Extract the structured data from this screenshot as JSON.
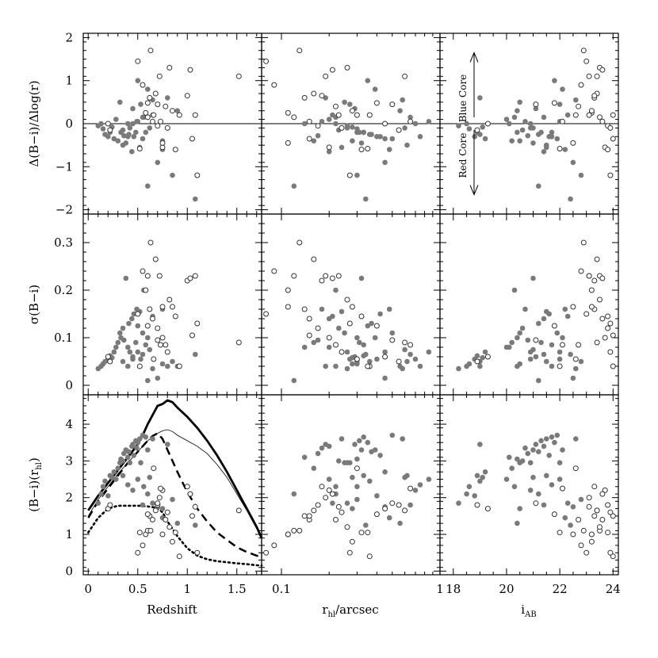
{
  "chart_data": {
    "type": "scatter",
    "columns": [
      {
        "key": "z",
        "xlabel_main": "Redshift",
        "xlabel_sub": "",
        "xlabel_tail": "",
        "xlim": [
          -0.05,
          1.75
        ],
        "xscale": "linear",
        "xticks": [
          0,
          0.5,
          1,
          1.5
        ],
        "xticklabels": [
          "0",
          "0.5",
          "1",
          "1.5"
        ],
        "xminor": [
          0.1,
          0.2,
          0.3,
          0.4,
          0.6,
          0.7,
          0.8,
          0.9,
          1.1,
          1.2,
          1.3,
          1.4,
          1.6,
          1.7
        ]
      },
      {
        "key": "r",
        "xlabel_main": "r",
        "xlabel_sub": "hl",
        "xlabel_tail": "/arcsec",
        "xlim": [
          0.075,
          1.0
        ],
        "xscale": "log",
        "xticks": [
          0.1,
          1
        ],
        "xticklabels": [
          "0.1",
          "1"
        ],
        "xminor": [
          0.2,
          0.3,
          0.4,
          0.5,
          0.6,
          0.7,
          0.8,
          0.9
        ]
      },
      {
        "key": "i",
        "xlabel_main": "i",
        "xlabel_sub": "AB",
        "xlabel_tail": "",
        "xlim": [
          17.5,
          24.2
        ],
        "xscale": "linear",
        "xticks": [
          18,
          20,
          22,
          24
        ],
        "xticklabels": [
          "18",
          "20",
          "22",
          "24"
        ],
        "xminor": [
          18.5,
          19,
          19.5,
          20.5,
          21,
          21.5,
          22.5,
          23,
          23.5
        ]
      }
    ],
    "rows": [
      {
        "key": "grad",
        "ylabel": "Δ(B−i)/Δlog(r)",
        "ylim": [
          -2.1,
          2.1
        ],
        "yticks": [
          -2,
          -1,
          0,
          1,
          2
        ],
        "yticklabels": [
          "−2",
          "−1",
          "0",
          "1",
          "2"
        ],
        "zero_line": true
      },
      {
        "key": "sig",
        "ylabel": "σ(B−i)",
        "ylim": [
          -0.02,
          0.36
        ],
        "yticks": [
          0,
          0.1,
          0.2,
          0.3
        ],
        "yticklabels": [
          "0",
          "0.1",
          "0.2",
          "0.3"
        ],
        "zero_line": false
      },
      {
        "key": "col",
        "ylabel": "(B−i)(r",
        "ylabel_sub": "hl",
        "ylabel_tail": ")",
        "ylim": [
          -0.1,
          4.8
        ],
        "yticks": [
          0,
          1,
          2,
          3,
          4
        ],
        "yticklabels": [
          "0",
          "1",
          "2",
          "3",
          "4"
        ],
        "zero_line": false
      }
    ],
    "annotations": {
      "blue_core": "Blue Core",
      "red_core": "Red Core"
    },
    "model_tracks": [
      {
        "name": "",
        "style": "thick-solid",
        "x": [
          0,
          0.1,
          0.2,
          0.3,
          0.4,
          0.5,
          0.55,
          0.6,
          0.65,
          0.7,
          0.75,
          0.8,
          0.85,
          0.9,
          1.0,
          1.1,
          1.2,
          1.3,
          1.4,
          1.5,
          1.6,
          1.7,
          1.75
        ],
        "y": [
          1.65,
          2.05,
          2.4,
          2.75,
          3.1,
          3.45,
          3.7,
          4.0,
          4.25,
          4.5,
          4.55,
          4.65,
          4.6,
          4.45,
          4.2,
          3.9,
          3.55,
          3.15,
          2.7,
          2.2,
          1.7,
          1.2,
          0.9
        ]
      },
      {
        "name": "",
        "style": "thin-solid",
        "x": [
          0,
          0.1,
          0.2,
          0.3,
          0.4,
          0.5,
          0.55,
          0.6,
          0.65,
          0.7,
          0.75,
          0.8,
          0.85,
          0.9,
          1.0,
          1.1,
          1.2,
          1.3,
          1.4,
          1.5,
          1.6,
          1.7,
          1.75
        ],
        "y": [
          1.5,
          1.95,
          2.3,
          2.65,
          2.95,
          3.25,
          3.4,
          3.55,
          3.65,
          3.75,
          3.82,
          3.85,
          3.8,
          3.7,
          3.55,
          3.4,
          3.2,
          2.9,
          2.55,
          2.1,
          1.65,
          1.15,
          0.88
        ]
      },
      {
        "name": "",
        "style": "dashed",
        "x": [
          0,
          0.1,
          0.2,
          0.3,
          0.4,
          0.5,
          0.6,
          0.65,
          0.7,
          0.75,
          0.8,
          0.9,
          1.0,
          1.1,
          1.2,
          1.3,
          1.4,
          1.5,
          1.6,
          1.7,
          1.75
        ],
        "y": [
          1.45,
          1.9,
          2.25,
          2.6,
          2.95,
          3.25,
          3.55,
          3.68,
          3.75,
          3.6,
          3.3,
          2.7,
          2.15,
          1.7,
          1.35,
          1.05,
          0.85,
          0.65,
          0.52,
          0.42,
          0.38
        ]
      },
      {
        "name": "",
        "style": "dotted",
        "x": [
          0,
          0.1,
          0.2,
          0.3,
          0.4,
          0.5,
          0.6,
          0.7,
          0.75,
          0.8,
          0.9,
          1.0,
          1.1,
          1.2,
          1.3,
          1.4,
          1.5,
          1.6,
          1.7,
          1.75
        ],
        "y": [
          1.05,
          1.45,
          1.7,
          1.78,
          1.78,
          1.78,
          1.76,
          1.72,
          1.6,
          1.35,
          0.95,
          0.62,
          0.42,
          0.32,
          0.27,
          0.24,
          0.21,
          0.19,
          0.16,
          0.15
        ]
      }
    ],
    "points": [
      {
        "z": 0.1,
        "r": 0.26,
        "i": 18.2,
        "grad": -0.05,
        "sig": 0.035,
        "col": 1.85,
        "f": 1
      },
      {
        "z": 0.13,
        "r": 0.22,
        "i": 18.5,
        "grad": 0.0,
        "sig": 0.04,
        "col": 2.1,
        "f": 1
      },
      {
        "z": 0.15,
        "r": 0.3,
        "i": 18.6,
        "grad": -0.12,
        "sig": 0.045,
        "col": 2.3,
        "f": 1
      },
      {
        "z": 0.17,
        "r": 0.36,
        "i": 19.0,
        "grad": -0.25,
        "sig": 0.05,
        "col": 2.45,
        "f": 1
      },
      {
        "z": 0.2,
        "r": 0.4,
        "i": 18.8,
        "grad": -0.3,
        "sig": 0.055,
        "col": 2.05,
        "f": 1
      },
      {
        "z": 0.22,
        "r": 0.33,
        "i": 18.9,
        "grad": -0.2,
        "sig": 0.062,
        "col": 2.6,
        "f": 1
      },
      {
        "z": 0.24,
        "r": 0.28,
        "i": 19.1,
        "grad": -0.08,
        "sig": 0.058,
        "col": 2.55,
        "f": 1
      },
      {
        "z": 0.26,
        "r": 0.45,
        "i": 19.2,
        "grad": -0.35,
        "sig": 0.07,
        "col": 2.7,
        "f": 1
      },
      {
        "z": 0.28,
        "r": 0.2,
        "i": 20.0,
        "grad": 0.1,
        "sig": 0.08,
        "col": 2.5,
        "f": 1
      },
      {
        "z": 0.3,
        "r": 0.16,
        "i": 20.2,
        "grad": -0.4,
        "sig": 0.09,
        "col": 2.8,
        "f": 1
      },
      {
        "z": 0.32,
        "r": 0.25,
        "i": 20.5,
        "grad": 0.5,
        "sig": 0.11,
        "col": 2.95,
        "f": 1
      },
      {
        "z": 0.33,
        "r": 0.3,
        "i": 20.4,
        "grad": -0.2,
        "sig": 0.1,
        "col": 3.05,
        "f": 1
      },
      {
        "z": 0.35,
        "r": 0.23,
        "i": 20.6,
        "grad": -0.15,
        "sig": 0.12,
        "col": 3.0,
        "f": 1
      },
      {
        "z": 0.36,
        "r": 0.17,
        "i": 20.8,
        "grad": -0.28,
        "sig": 0.095,
        "col": 3.2,
        "f": 1
      },
      {
        "z": 0.38,
        "r": 0.32,
        "i": 21.0,
        "grad": -0.45,
        "sig": 0.225,
        "col": 3.3,
        "f": 1
      },
      {
        "z": 0.4,
        "r": 0.14,
        "i": 20.1,
        "grad": 0.0,
        "sig": 0.08,
        "col": 3.1,
        "f": 1
      },
      {
        "z": 0.41,
        "r": 0.37,
        "i": 21.2,
        "grad": -0.25,
        "sig": 0.13,
        "col": 3.25,
        "f": 1
      },
      {
        "z": 0.42,
        "r": 0.26,
        "i": 20.9,
        "grad": -0.1,
        "sig": 0.07,
        "col": 2.95,
        "f": 1
      },
      {
        "z": 0.44,
        "r": 0.2,
        "i": 21.4,
        "grad": -0.65,
        "sig": 0.14,
        "col": 3.4,
        "f": 1
      },
      {
        "z": 0.45,
        "r": 0.29,
        "i": 21.1,
        "grad": 0.35,
        "sig": 0.06,
        "col": 3.45,
        "f": 1
      },
      {
        "z": 0.46,
        "r": 0.42,
        "i": 21.6,
        "grad": -0.3,
        "sig": 0.15,
        "col": 3.15,
        "f": 1
      },
      {
        "z": 0.48,
        "r": 0.31,
        "i": 21.3,
        "grad": -0.2,
        "sig": 0.09,
        "col": 3.55,
        "f": 1
      },
      {
        "z": 0.49,
        "r": 0.18,
        "i": 20.7,
        "grad": 0.05,
        "sig": 0.16,
        "col": 3.35,
        "f": 1
      },
      {
        "z": 0.5,
        "r": 0.35,
        "i": 21.8,
        "grad": 1.0,
        "sig": 0.125,
        "col": 3.5,
        "f": 1
      },
      {
        "z": 0.52,
        "r": 0.24,
        "i": 21.5,
        "grad": -0.55,
        "sig": 0.155,
        "col": 3.6,
        "f": 1
      },
      {
        "z": 0.53,
        "r": 0.27,
        "i": 22.0,
        "grad": 0.45,
        "sig": 0.055,
        "col": 2.95,
        "f": 1
      },
      {
        "z": 0.55,
        "r": 0.5,
        "i": 21.9,
        "grad": -0.35,
        "sig": 0.11,
        "col": 3.7,
        "f": 1
      },
      {
        "z": 0.56,
        "r": 0.22,
        "i": 20.3,
        "grad": 0.15,
        "sig": 0.2,
        "col": 2.3,
        "f": 1
      },
      {
        "z": 0.58,
        "r": 0.33,
        "i": 21.7,
        "grad": -0.2,
        "sig": 0.085,
        "col": 3.65,
        "f": 1
      },
      {
        "z": 0.6,
        "r": 0.39,
        "i": 22.1,
        "grad": 0.8,
        "sig": 0.1,
        "col": 3.3,
        "f": 1
      },
      {
        "z": 0.62,
        "r": 0.6,
        "i": 21.0,
        "grad": -0.1,
        "sig": 0.075,
        "col": 2.55,
        "f": 1
      },
      {
        "z": 0.65,
        "r": 0.21,
        "i": 22.3,
        "grad": 0.2,
        "sig": 0.145,
        "col": 1.85,
        "f": 1
      },
      {
        "z": 0.7,
        "r": 0.45,
        "i": 22.5,
        "grad": -0.9,
        "sig": 0.015,
        "col": 1.75,
        "f": 1
      },
      {
        "z": 0.75,
        "r": 0.28,
        "i": 20.5,
        "grad": -0.4,
        "sig": 0.045,
        "col": 1.7,
        "f": 1
      },
      {
        "z": 0.8,
        "r": 0.19,
        "i": 19.0,
        "grad": 0.6,
        "sig": 0.04,
        "col": 3.45,
        "f": 1
      },
      {
        "z": 0.85,
        "r": 0.3,
        "i": 22.8,
        "grad": -1.2,
        "sig": 0.05,
        "col": 1.95,
        "f": 1
      },
      {
        "z": 0.6,
        "r": 0.12,
        "i": 21.2,
        "grad": -1.45,
        "sig": 0.01,
        "col": 2.1,
        "f": 1
      },
      {
        "z": 0.75,
        "r": 0.48,
        "i": 22.2,
        "grad": -0.6,
        "sig": 0.16,
        "col": 1.45,
        "f": 1
      },
      {
        "z": 0.9,
        "r": 0.56,
        "i": 20.4,
        "grad": 0.3,
        "sig": 0.04,
        "col": 1.3,
        "f": 1
      },
      {
        "z": 1.08,
        "r": 0.34,
        "i": 22.4,
        "grad": -1.75,
        "sig": 0.065,
        "col": 1.25,
        "f": 1
      },
      {
        "z": 0.35,
        "r": 0.62,
        "i": 21.5,
        "grad": -0.5,
        "sig": 0.05,
        "col": 2.6,
        "f": 1
      },
      {
        "z": 0.45,
        "r": 0.7,
        "i": 20.9,
        "grad": 0.0,
        "sig": 0.055,
        "col": 2.2,
        "f": 1
      },
      {
        "z": 0.55,
        "r": 0.65,
        "i": 21.4,
        "grad": 0.15,
        "sig": 0.065,
        "col": 1.8,
        "f": 1
      },
      {
        "z": 0.4,
        "r": 0.75,
        "i": 21.7,
        "grad": -0.3,
        "sig": 0.04,
        "col": 2.35,
        "f": 1
      },
      {
        "z": 0.5,
        "r": 0.85,
        "i": 22.0,
        "grad": 0.05,
        "sig": 0.07,
        "col": 2.5,
        "f": 1
      },
      {
        "z": 0.65,
        "r": 0.58,
        "i": 22.6,
        "grad": 0.55,
        "sig": 0.035,
        "col": 3.6,
        "f": 1
      },
      {
        "z": 0.2,
        "r": 0.45,
        "i": 19.3,
        "grad": 0.0,
        "sig": 0.06,
        "col": 1.7,
        "f": 0
      },
      {
        "z": 0.22,
        "r": 0.55,
        "i": 18.9,
        "grad": -0.15,
        "sig": 0.05,
        "col": 1.8,
        "f": 0
      },
      {
        "z": 0.5,
        "r": 0.08,
        "i": 23.0,
        "grad": 1.45,
        "sig": 0.15,
        "col": 0.5,
        "f": 0
      },
      {
        "z": 0.55,
        "r": 0.09,
        "i": 22.8,
        "grad": 0.9,
        "sig": 0.24,
        "col": 0.7,
        "f": 0
      },
      {
        "z": 0.58,
        "r": 0.11,
        "i": 23.2,
        "grad": 0.25,
        "sig": 0.2,
        "col": 1.0,
        "f": 0
      },
      {
        "z": 0.6,
        "r": 0.12,
        "i": 23.5,
        "grad": 0.15,
        "sig": 0.23,
        "col": 1.1,
        "f": 0
      },
      {
        "z": 0.62,
        "r": 0.14,
        "i": 23.3,
        "grad": 0.6,
        "sig": 0.16,
        "col": 1.5,
        "f": 0
      },
      {
        "z": 0.63,
        "r": 0.13,
        "i": 22.9,
        "grad": 1.7,
        "sig": 0.3,
        "col": 1.1,
        "f": 0
      },
      {
        "z": 0.65,
        "r": 0.15,
        "i": 23.6,
        "grad": 0.05,
        "sig": 0.14,
        "col": 1.4,
        "f": 0
      },
      {
        "z": 0.68,
        "r": 0.16,
        "i": 23.4,
        "grad": 0.7,
        "sig": 0.265,
        "col": 1.65,
        "f": 0
      },
      {
        "z": 0.7,
        "r": 0.17,
        "i": 23.8,
        "grad": -0.05,
        "sig": 0.12,
        "col": 1.8,
        "f": 0
      },
      {
        "z": 0.72,
        "r": 0.19,
        "i": 23.1,
        "grad": 1.1,
        "sig": 0.23,
        "col": 2.0,
        "f": 0
      },
      {
        "z": 0.75,
        "r": 0.2,
        "i": 23.7,
        "grad": -0.55,
        "sig": 0.1,
        "col": 2.2,
        "f": 0
      },
      {
        "z": 0.78,
        "r": 0.22,
        "i": 22.7,
        "grad": 0.4,
        "sig": 0.085,
        "col": 1.4,
        "f": 0
      },
      {
        "z": 0.8,
        "r": 0.24,
        "i": 23.9,
        "grad": -0.1,
        "sig": 0.07,
        "col": 1.6,
        "f": 0
      },
      {
        "z": 0.82,
        "r": 0.26,
        "i": 23.5,
        "grad": 1.3,
        "sig": 0.18,
        "col": 1.2,
        "f": 0
      },
      {
        "z": 0.85,
        "r": 0.28,
        "i": 23.2,
        "grad": 0.3,
        "sig": 0.165,
        "col": 0.8,
        "f": 0
      },
      {
        "z": 0.88,
        "r": 0.32,
        "i": 23.8,
        "grad": -0.6,
        "sig": 0.145,
        "col": 1.05,
        "f": 0
      },
      {
        "z": 0.92,
        "r": 0.36,
        "i": 24.0,
        "grad": 0.2,
        "sig": 0.04,
        "col": 0.4,
        "f": 0
      },
      {
        "z": 1.0,
        "r": 0.18,
        "i": 23.3,
        "grad": 0.65,
        "sig": 0.22,
        "col": 2.3,
        "f": 0
      },
      {
        "z": 1.03,
        "r": 0.21,
        "i": 23.6,
        "grad": 1.25,
        "sig": 0.225,
        "col": 2.1,
        "f": 0
      },
      {
        "z": 1.05,
        "r": 0.15,
        "i": 24.0,
        "grad": -0.35,
        "sig": 0.105,
        "col": 1.5,
        "f": 0
      },
      {
        "z": 1.08,
        "r": 0.23,
        "i": 23.1,
        "grad": 0.2,
        "sig": 0.23,
        "col": 1.75,
        "f": 0
      },
      {
        "z": 1.1,
        "r": 0.27,
        "i": 23.9,
        "grad": -1.2,
        "sig": 0.13,
        "col": 0.5,
        "f": 0
      },
      {
        "z": 1.52,
        "r": 0.6,
        "i": 23.4,
        "grad": 1.1,
        "sig": 0.09,
        "col": 1.65,
        "f": 0
      },
      {
        "z": 0.52,
        "r": 0.35,
        "i": 22.0,
        "grad": -0.58,
        "sig": 0.04,
        "col": 1.05,
        "f": 0
      },
      {
        "z": 0.6,
        "r": 0.4,
        "i": 21.8,
        "grad": 0.48,
        "sig": 0.125,
        "col": 1.55,
        "f": 0
      },
      {
        "z": 0.66,
        "r": 0.3,
        "i": 22.6,
        "grad": 0.2,
        "sig": 0.055,
        "col": 2.8,
        "f": 0
      },
      {
        "z": 0.7,
        "r": 0.5,
        "i": 21.1,
        "grad": 0.45,
        "sig": 0.095,
        "col": 1.85,
        "f": 0
      },
      {
        "z": 0.73,
        "r": 0.65,
        "i": 22.1,
        "grad": 0.05,
        "sig": 0.085,
        "col": 2.25,
        "f": 0
      },
      {
        "z": 0.75,
        "r": 0.11,
        "i": 22.5,
        "grad": -0.45,
        "sig": 0.165,
        "col": 1.0,
        "f": 0
      }
    ]
  }
}
